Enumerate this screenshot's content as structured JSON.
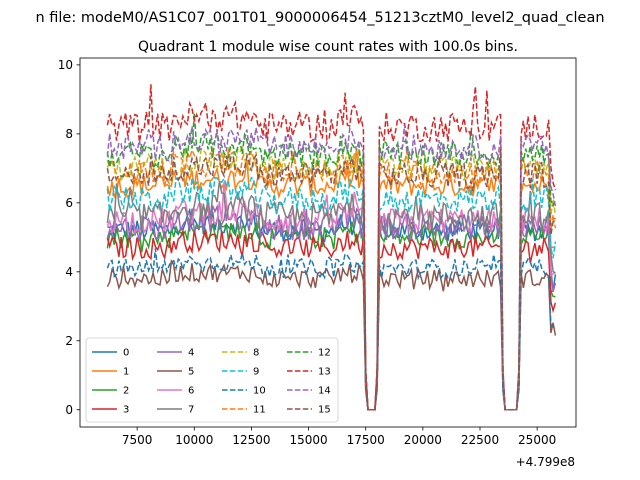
{
  "supertitle": "n file: modeM0/AS1C07_001T01_9000006454_51213cztM0_level2_quad_clean",
  "chart_data": {
    "type": "line",
    "title": "Quadrant 1 module wise count rates with 100.0s bins.",
    "xlabel": "",
    "ylabel": "",
    "x_offset_label": "+4.799e8",
    "xlim": [
      5000,
      26700
    ],
    "ylim": [
      -0.5,
      10.2
    ],
    "x_ticks": [
      7500,
      10000,
      12500,
      15000,
      17500,
      20000,
      22500,
      25000
    ],
    "y_ticks": [
      0,
      2,
      4,
      6,
      8,
      10
    ],
    "x_range": [
      6200,
      25800
    ],
    "bin_step": 100,
    "gaps": [
      [
        17500,
        18050
      ],
      [
        23500,
        24250
      ]
    ],
    "legend_position": "lower-left",
    "grid": false,
    "series": [
      {
        "name": "0",
        "color": "#1f77b4",
        "dash": "solid",
        "level": 5.2,
        "amp": 0.3
      },
      {
        "name": "1",
        "color": "#ff7f0e",
        "dash": "solid",
        "level": 6.5,
        "amp": 0.3
      },
      {
        "name": "2",
        "color": "#2ca02c",
        "dash": "solid",
        "level": 5.0,
        "amp": 0.3
      },
      {
        "name": "3",
        "color": "#d62728",
        "dash": "solid",
        "level": 4.7,
        "amp": 0.3
      },
      {
        "name": "4",
        "color": "#9467bd",
        "dash": "solid",
        "level": 5.3,
        "amp": 0.35
      },
      {
        "name": "5",
        "color": "#8c564b",
        "dash": "solid",
        "level": 3.8,
        "amp": 0.25
      },
      {
        "name": "6",
        "color": "#e377c2",
        "dash": "solid",
        "level": 5.5,
        "amp": 0.35
      },
      {
        "name": "7",
        "color": "#7f7f7f",
        "dash": "solid",
        "level": 5.6,
        "amp": 0.4
      },
      {
        "name": "8",
        "color": "#bcbd22",
        "dash": "dashed",
        "level": 7.0,
        "amp": 0.35
      },
      {
        "name": "9",
        "color": "#17becf",
        "dash": "dashed",
        "level": 6.1,
        "amp": 0.35
      },
      {
        "name": "10",
        "color": "#1f77b4",
        "dash": "dashed",
        "level": 4.1,
        "amp": 0.25
      },
      {
        "name": "11",
        "color": "#ff7f0e",
        "dash": "dashed",
        "level": 6.9,
        "amp": 0.35
      },
      {
        "name": "12",
        "color": "#2ca02c",
        "dash": "dashed",
        "level": 7.4,
        "amp": 0.35
      },
      {
        "name": "13",
        "color": "#d62728",
        "dash": "dashed",
        "level": 8.2,
        "amp": 0.4
      },
      {
        "name": "14",
        "color": "#9467bd",
        "dash": "dashed",
        "level": 7.6,
        "amp": 0.35
      },
      {
        "name": "15",
        "color": "#8c564b",
        "dash": "dashed",
        "level": 6.8,
        "amp": 0.35
      }
    ]
  }
}
